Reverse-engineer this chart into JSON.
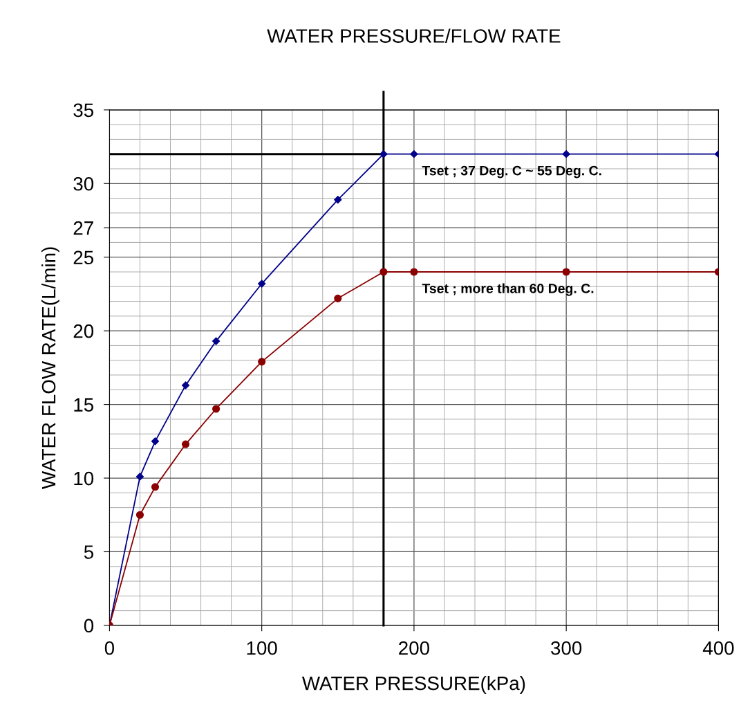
{
  "chart_data": {
    "type": "line",
    "title": "WATER PRESSURE/FLOW RATE",
    "xlabel": "WATER PRESSURE(kPa)",
    "ylabel": "WATER FLOW RATE(L/min)",
    "series": [
      {
        "name": "Tset ; 37 Deg. C ~ 55 Deg. C.",
        "color": "#00008b",
        "marker": "diamond",
        "x": [
          0,
          20,
          30,
          50,
          70,
          100,
          150,
          180,
          200,
          300,
          400
        ],
        "values": [
          0,
          10.1,
          12.5,
          16.3,
          19.3,
          23.2,
          28.9,
          32,
          32,
          32,
          32
        ]
      },
      {
        "name": "Tset ; more than 60 Deg. C.",
        "color": "#8b0000",
        "marker": "circle",
        "x": [
          0,
          20,
          30,
          50,
          70,
          100,
          150,
          180,
          200,
          300,
          400
        ],
        "values": [
          0,
          7.5,
          9.4,
          12.3,
          14.7,
          17.9,
          22.2,
          24,
          24,
          24,
          24
        ]
      }
    ],
    "xlim": [
      0,
      400
    ],
    "ylim": [
      0,
      35
    ],
    "xticks": [
      0,
      {
        "value": 20,
        "label": null
      },
      {
        "value": 40,
        "label": null
      },
      {
        "value": 60,
        "label": null
      },
      {
        "value": 80,
        "label": null
      },
      100,
      {
        "value": 120,
        "label": null
      },
      {
        "value": 140,
        "label": null
      },
      {
        "value": 160,
        "label": null
      },
      {
        "value": 180,
        "label": null
      },
      200,
      {
        "value": 220,
        "label": null
      },
      {
        "value": 240,
        "label": null
      },
      {
        "value": 260,
        "label": null
      },
      {
        "value": 280,
        "label": null
      },
      300,
      {
        "value": 320,
        "label": null
      },
      {
        "value": 340,
        "label": null
      },
      {
        "value": 360,
        "label": null
      },
      {
        "value": 380,
        "label": null
      },
      400
    ],
    "yticks": [
      0,
      {
        "value": 1,
        "label": null
      },
      {
        "value": 2,
        "label": null
      },
      {
        "value": 3,
        "label": null
      },
      {
        "value": 4,
        "label": null
      },
      5,
      {
        "value": 6,
        "label": null
      },
      {
        "value": 7,
        "label": null
      },
      {
        "value": 8,
        "label": null
      },
      {
        "value": 9,
        "label": null
      },
      10,
      {
        "value": 11,
        "label": null
      },
      {
        "value": 12,
        "label": null
      },
      {
        "value": 13,
        "label": null
      },
      {
        "value": 14,
        "label": null
      },
      15,
      {
        "value": 16,
        "label": null
      },
      {
        "value": 17,
        "label": null
      },
      {
        "value": 18,
        "label": null
      },
      {
        "value": 19,
        "label": null
      },
      20,
      {
        "value": 21,
        "label": null
      },
      {
        "value": 22,
        "label": null
      },
      {
        "value": 23,
        "label": null
      },
      {
        "value": 24,
        "label": null
      },
      25,
      {
        "value": 26,
        "label": null
      },
      {
        "value": 27,
        "label": "27"
      },
      {
        "value": 28,
        "label": null
      },
      {
        "value": 29,
        "label": null
      },
      30,
      {
        "value": 31,
        "label": null
      },
      {
        "value": 32,
        "label": null
      },
      {
        "value": 33,
        "label": null
      },
      {
        "value": 34,
        "label": null
      },
      35
    ],
    "grid": true,
    "ref_lines": [
      {
        "axis": "y",
        "value": 32,
        "color": "#000000"
      },
      {
        "axis": "x",
        "value": 180,
        "color": "#000000"
      }
    ]
  }
}
